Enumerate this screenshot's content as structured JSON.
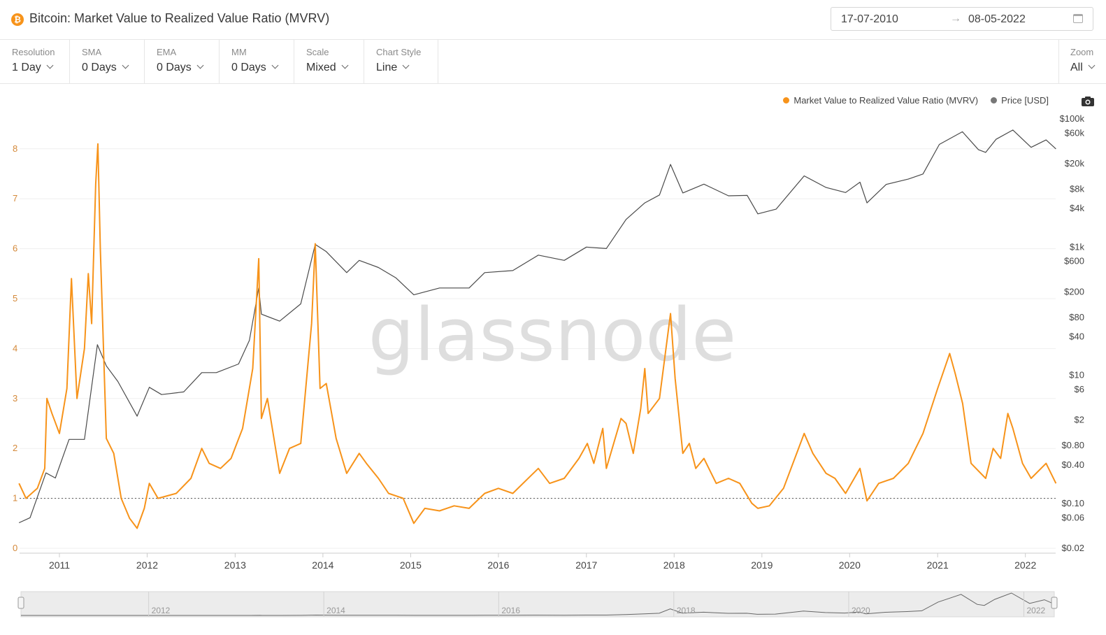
{
  "header": {
    "title": "Bitcoin: Market Value to Realized Value Ratio (MVRV)",
    "date_start": "17-07-2010",
    "date_arrow": "→",
    "date_end": "08-05-2022"
  },
  "toolbar": {
    "controls": [
      {
        "label": "Resolution",
        "value": "1 Day"
      },
      {
        "label": "SMA",
        "value": "0 Days"
      },
      {
        "label": "EMA",
        "value": "0 Days"
      },
      {
        "label": "MM",
        "value": "0 Days"
      },
      {
        "label": "Scale",
        "value": "Mixed"
      },
      {
        "label": "Chart Style",
        "value": "Line"
      }
    ],
    "zoom": {
      "label": "Zoom",
      "value": "All"
    }
  },
  "legend": {
    "mvrv": "Market Value to Realized Value Ratio (MVRV)",
    "price": "Price [USD]"
  },
  "watermark": "glassnode",
  "colors": {
    "mvrv": "#f7931a",
    "price": "#4a4a4a",
    "grid": "#efefef"
  },
  "chart_data": {
    "type": "line",
    "x_ticks": [
      "2011",
      "2012",
      "2013",
      "2014",
      "2015",
      "2016",
      "2017",
      "2018",
      "2019",
      "2020",
      "2021",
      "2022"
    ],
    "left_axis": {
      "scale": "linear",
      "range": [
        0,
        8.5
      ],
      "ticks": [
        "0",
        "1",
        "2",
        "3",
        "4",
        "5",
        "6",
        "7",
        "8"
      ]
    },
    "right_axis": {
      "scale": "log",
      "ticks": [
        "$0.02",
        "$0.06",
        "$0.10",
        "$0.40",
        "$0.80",
        "$2",
        "$6",
        "$10",
        "$40",
        "$80",
        "$200",
        "$600",
        "$1k",
        "$4k",
        "$8k",
        "$20k",
        "$60k",
        "$100k"
      ]
    },
    "reference_line_mvrv": 1,
    "series": [
      {
        "name": "Market Value to Realized Value Ratio (MVRV)",
        "axis": "left",
        "points": [
          [
            "2010-07-17",
            1.3
          ],
          [
            "2010-08-15",
            1.0
          ],
          [
            "2010-10-01",
            1.2
          ],
          [
            "2010-11-01",
            1.6
          ],
          [
            "2010-11-10",
            3.0
          ],
          [
            "2010-12-01",
            2.7
          ],
          [
            "2011-01-01",
            2.3
          ],
          [
            "2011-02-01",
            3.2
          ],
          [
            "2011-02-20",
            5.4
          ],
          [
            "2011-03-15",
            3.0
          ],
          [
            "2011-04-15",
            4.0
          ],
          [
            "2011-05-01",
            5.5
          ],
          [
            "2011-05-15",
            4.5
          ],
          [
            "2011-06-01",
            7.3
          ],
          [
            "2011-06-10",
            8.1
          ],
          [
            "2011-06-20",
            6.0
          ],
          [
            "2011-07-15",
            2.2
          ],
          [
            "2011-08-15",
            1.9
          ],
          [
            "2011-09-15",
            1.0
          ],
          [
            "2011-10-20",
            0.6
          ],
          [
            "2011-11-20",
            0.4
          ],
          [
            "2011-12-20",
            0.8
          ],
          [
            "2012-01-10",
            1.3
          ],
          [
            "2012-02-15",
            1.0
          ],
          [
            "2012-05-01",
            1.1
          ],
          [
            "2012-07-01",
            1.4
          ],
          [
            "2012-08-15",
            2.0
          ],
          [
            "2012-09-15",
            1.7
          ],
          [
            "2012-11-01",
            1.6
          ],
          [
            "2012-12-15",
            1.8
          ],
          [
            "2013-02-01",
            2.4
          ],
          [
            "2013-03-15",
            3.6
          ],
          [
            "2013-04-09",
            5.8
          ],
          [
            "2013-04-20",
            2.6
          ],
          [
            "2013-05-15",
            3.0
          ],
          [
            "2013-07-05",
            1.5
          ],
          [
            "2013-08-15",
            2.0
          ],
          [
            "2013-10-01",
            2.1
          ],
          [
            "2013-11-15",
            4.5
          ],
          [
            "2013-11-30",
            6.1
          ],
          [
            "2013-12-20",
            3.2
          ],
          [
            "2014-01-15",
            3.3
          ],
          [
            "2014-02-25",
            2.2
          ],
          [
            "2014-04-10",
            1.5
          ],
          [
            "2014-06-01",
            1.9
          ],
          [
            "2014-07-01",
            1.7
          ],
          [
            "2014-08-20",
            1.4
          ],
          [
            "2014-10-01",
            1.1
          ],
          [
            "2014-12-01",
            1.0
          ],
          [
            "2015-01-14",
            0.5
          ],
          [
            "2015-03-01",
            0.8
          ],
          [
            "2015-05-01",
            0.75
          ],
          [
            "2015-07-01",
            0.85
          ],
          [
            "2015-09-01",
            0.8
          ],
          [
            "2015-11-05",
            1.1
          ],
          [
            "2016-01-01",
            1.2
          ],
          [
            "2016-03-01",
            1.1
          ],
          [
            "2016-06-15",
            1.6
          ],
          [
            "2016-08-01",
            1.3
          ],
          [
            "2016-10-01",
            1.4
          ],
          [
            "2016-12-01",
            1.8
          ],
          [
            "2017-01-05",
            2.1
          ],
          [
            "2017-02-01",
            1.7
          ],
          [
            "2017-03-10",
            2.4
          ],
          [
            "2017-03-25",
            1.6
          ],
          [
            "2017-05-25",
            2.6
          ],
          [
            "2017-06-15",
            2.5
          ],
          [
            "2017-07-15",
            1.9
          ],
          [
            "2017-08-15",
            2.8
          ],
          [
            "2017-09-01",
            3.6
          ],
          [
            "2017-09-15",
            2.7
          ],
          [
            "2017-11-01",
            3.0
          ],
          [
            "2017-12-17",
            4.7
          ],
          [
            "2018-01-05",
            3.4
          ],
          [
            "2018-02-06",
            1.9
          ],
          [
            "2018-03-05",
            2.1
          ],
          [
            "2018-04-01",
            1.6
          ],
          [
            "2018-05-05",
            1.8
          ],
          [
            "2018-06-25",
            1.3
          ],
          [
            "2018-08-15",
            1.4
          ],
          [
            "2018-10-01",
            1.3
          ],
          [
            "2018-11-20",
            0.9
          ],
          [
            "2018-12-15",
            0.8
          ],
          [
            "2019-02-01",
            0.85
          ],
          [
            "2019-04-01",
            1.2
          ],
          [
            "2019-06-26",
            2.3
          ],
          [
            "2019-08-01",
            1.9
          ],
          [
            "2019-09-25",
            1.5
          ],
          [
            "2019-11-01",
            1.4
          ],
          [
            "2019-12-15",
            1.1
          ],
          [
            "2020-02-13",
            1.6
          ],
          [
            "2020-03-13",
            0.95
          ],
          [
            "2020-05-01",
            1.3
          ],
          [
            "2020-07-01",
            1.4
          ],
          [
            "2020-09-01",
            1.7
          ],
          [
            "2020-11-01",
            2.3
          ],
          [
            "2021-01-01",
            3.2
          ],
          [
            "2021-02-20",
            3.9
          ],
          [
            "2021-03-15",
            3.5
          ],
          [
            "2021-04-15",
            2.9
          ],
          [
            "2021-05-20",
            1.7
          ],
          [
            "2021-07-20",
            1.4
          ],
          [
            "2021-08-20",
            2.0
          ],
          [
            "2021-09-20",
            1.8
          ],
          [
            "2021-10-20",
            2.7
          ],
          [
            "2021-11-10",
            2.4
          ],
          [
            "2021-12-20",
            1.7
          ],
          [
            "2022-01-25",
            1.4
          ],
          [
            "2022-03-28",
            1.7
          ],
          [
            "2022-05-08",
            1.3
          ]
        ]
      },
      {
        "name": "Price [USD]",
        "axis": "right",
        "points": [
          [
            "2010-07-17",
            0.05
          ],
          [
            "2010-09-01",
            0.06
          ],
          [
            "2010-11-06",
            0.3
          ],
          [
            "2010-12-15",
            0.25
          ],
          [
            "2011-02-10",
            1.0
          ],
          [
            "2011-04-15",
            1.0
          ],
          [
            "2011-06-08",
            30
          ],
          [
            "2011-07-15",
            14
          ],
          [
            "2011-09-01",
            8
          ],
          [
            "2011-11-20",
            2.3
          ],
          [
            "2012-01-10",
            6.5
          ],
          [
            "2012-03-01",
            5.0
          ],
          [
            "2012-06-01",
            5.5
          ],
          [
            "2012-08-15",
            11
          ],
          [
            "2012-10-15",
            11
          ],
          [
            "2013-01-15",
            15
          ],
          [
            "2013-03-01",
            35
          ],
          [
            "2013-04-09",
            230
          ],
          [
            "2013-04-20",
            90
          ],
          [
            "2013-07-05",
            70
          ],
          [
            "2013-10-01",
            130
          ],
          [
            "2013-11-30",
            1100
          ],
          [
            "2014-01-15",
            850
          ],
          [
            "2014-04-10",
            400
          ],
          [
            "2014-06-01",
            620
          ],
          [
            "2014-08-20",
            480
          ],
          [
            "2014-11-01",
            330
          ],
          [
            "2015-01-14",
            180
          ],
          [
            "2015-05-01",
            230
          ],
          [
            "2015-09-01",
            230
          ],
          [
            "2015-11-05",
            400
          ],
          [
            "2016-03-01",
            430
          ],
          [
            "2016-06-15",
            750
          ],
          [
            "2016-10-01",
            620
          ],
          [
            "2017-01-01",
            1000
          ],
          [
            "2017-03-25",
            950
          ],
          [
            "2017-06-15",
            2700
          ],
          [
            "2017-09-01",
            4900
          ],
          [
            "2017-11-01",
            6500
          ],
          [
            "2017-12-17",
            19500
          ],
          [
            "2018-02-06",
            7000
          ],
          [
            "2018-05-05",
            9600
          ],
          [
            "2018-08-15",
            6300
          ],
          [
            "2018-11-01",
            6400
          ],
          [
            "2018-12-15",
            3300
          ],
          [
            "2019-03-01",
            3900
          ],
          [
            "2019-06-26",
            12900
          ],
          [
            "2019-09-25",
            8500
          ],
          [
            "2019-12-15",
            7100
          ],
          [
            "2020-02-13",
            10300
          ],
          [
            "2020-03-13",
            4900
          ],
          [
            "2020-06-01",
            9500
          ],
          [
            "2020-09-01",
            11500
          ],
          [
            "2020-11-01",
            13800
          ],
          [
            "2021-01-08",
            40000
          ],
          [
            "2021-04-14",
            63000
          ],
          [
            "2021-06-20",
            33000
          ],
          [
            "2021-07-20",
            30000
          ],
          [
            "2021-09-01",
            48000
          ],
          [
            "2021-11-10",
            67000
          ],
          [
            "2022-01-25",
            36000
          ],
          [
            "2022-03-28",
            47000
          ],
          [
            "2022-05-08",
            34000
          ]
        ]
      }
    ]
  }
}
